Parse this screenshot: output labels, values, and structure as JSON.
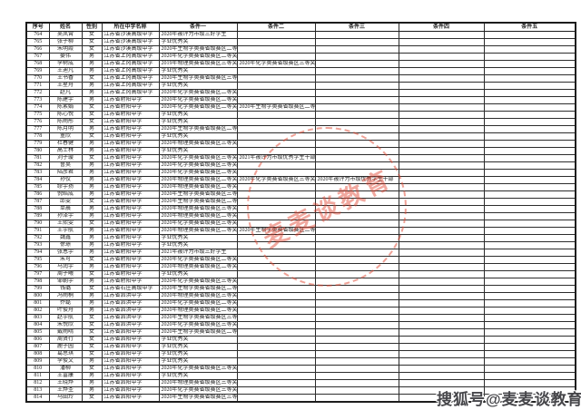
{
  "page": {
    "background": "#ffffff"
  },
  "watermarks": {
    "stamp_text": "麦麦谈教育",
    "stamp_color": "#e0462d",
    "sohu_badge": "搜狐号@麦麦谈教育"
  },
  "table": {
    "headers": [
      "序号",
      "姓名",
      "性别",
      "所在中学名称",
      "条件一",
      "条件二",
      "条件三",
      "条件四",
      "条件五"
    ],
    "rows": [
      [
        "764",
        "吴凤霄",
        "女",
        "江苏省沙溪高级中学",
        "2020年被评为市级三好学生",
        "",
        "",
        "",
        ""
      ],
      [
        "765",
        "张子柳",
        "女",
        "江苏省沙溪高级中学",
        "学业优秀奖",
        "",
        "",
        "",
        ""
      ],
      [
        "766",
        "朱明霞",
        "女",
        "江苏省沙溪高级中学",
        "2020年生物学奥赛省级赛区二等奖",
        "",
        "",
        "",
        ""
      ],
      [
        "767",
        "晏伟",
        "男",
        "江苏省上冈高级中学",
        "2020年化学奥赛省级赛区二等奖",
        "",
        "",
        "",
        ""
      ],
      [
        "768",
        "李树成",
        "男",
        "江苏省上冈高级中学",
        "2019年物理奥赛省级赛区三等奖",
        "2020年化学奥赛省级赛区三等奖",
        "",
        "",
        ""
      ],
      [
        "769",
        "王迪凡",
        "男",
        "江苏省上冈高级中学",
        "学业优秀奖",
        "",
        "",
        "",
        ""
      ],
      [
        "770",
        "王书香",
        "女",
        "江苏省上冈高级中学",
        "2020年生物学奥赛省级赛区三等奖",
        "",
        "",
        "",
        ""
      ],
      [
        "771",
        "王星舟",
        "男",
        "江苏省上冈高级中学",
        "学业优秀奖",
        "",
        "",
        "",
        ""
      ],
      [
        "772",
        "赵凡",
        "男",
        "江苏省上冈高级中学",
        "2020年化学奥赛省级赛区二等奖",
        "",
        "",
        "",
        ""
      ],
      [
        "773",
        "陈建宇",
        "男",
        "江苏省射阳中学",
        "2020年化学奥赛省级赛区二等奖",
        "",
        "",
        "",
        ""
      ],
      [
        "774",
        "陈素娟",
        "女",
        "江苏省射阳中学",
        "2020年化学奥赛省级赛区二等奖",
        "2020年生物学奥赛省级赛区二等奖",
        "",
        "",
        ""
      ],
      [
        "775",
        "陈心悦",
        "女",
        "江苏省射阳中学",
        "学业优秀奖",
        "",
        "",
        "",
        ""
      ],
      [
        "776",
        "陈雨彤",
        "女",
        "江苏省射阳中学",
        "学业优秀奖",
        "",
        "",
        "",
        ""
      ],
      [
        "777",
        "陈月明",
        "男",
        "江苏省射阳中学",
        "2020年生物学奥赛省级赛区二等奖",
        "",
        "",
        "",
        ""
      ],
      [
        "778",
        "董欣",
        "女",
        "江苏省射阳中学",
        "学业优秀奖",
        "",
        "",
        "",
        ""
      ],
      [
        "779",
        "杜春健",
        "男",
        "江苏省射阳中学",
        "2020年物理奥赛省级赛区三等奖",
        "",
        "",
        "",
        ""
      ],
      [
        "780",
        "高士林",
        "男",
        "江苏省射阳中学",
        "学业优秀奖",
        "",
        "",
        "",
        ""
      ],
      [
        "781",
        "刘子璇",
        "女",
        "江苏省射阳中学",
        "2020年化学奥赛省级赛区三等奖",
        "2021年被评为市级优秀学生干部",
        "",
        "",
        ""
      ],
      [
        "782",
        "鲁昊",
        "男",
        "江苏省射阳中学",
        "2020年化学奥赛省级赛区三等奖",
        "",
        "",
        "",
        ""
      ],
      [
        "783",
        "陆彦君",
        "男",
        "江苏省射阳中学",
        "2020年化学奥赛省级赛区二等奖",
        "",
        "",
        "",
        ""
      ],
      [
        "784",
        "孙仪",
        "男",
        "江苏省射阳中学",
        "2020年物理奥赛省级赛区二等奖",
        "2020年化学奥赛省级赛区三等奖",
        "2020年被评为市级优秀学生干部",
        "",
        ""
      ],
      [
        "785",
        "缪宇扬",
        "男",
        "江苏省射阳中学",
        "2020年物理奥赛省级赛区二等奖",
        "",
        "",
        "",
        ""
      ],
      [
        "786",
        "倪皓成",
        "男",
        "江苏省射阳中学",
        "2020年生物学奥赛省级赛区三等奖",
        "",
        "",
        "",
        ""
      ],
      [
        "787",
        "邱雯",
        "女",
        "江苏省射阳中学",
        "2020年生物学奥赛省级赛区二等奖",
        "",
        "",
        "",
        ""
      ],
      [
        "788",
        "单晨",
        "男",
        "江苏省射阳中学",
        "2020年物理奥赛省级赛区三等奖",
        "",
        "",
        "",
        ""
      ],
      [
        "789",
        "孙泽宇",
        "男",
        "江苏省射阳中学",
        "2020年物理奥赛省级赛区二等奖",
        "",
        "",
        "",
        ""
      ],
      [
        "790",
        "王熙雯",
        "女",
        "江苏省射阳中学",
        "2020年化学奥赛省级赛区三等奖",
        "",
        "",
        "",
        ""
      ],
      [
        "791",
        "王宇航",
        "男",
        "江苏省射阳中学",
        "2020年物理奥赛省级赛区二等奖",
        "2020年生物学奥赛省级赛区二等奖",
        "",
        "",
        ""
      ],
      [
        "792",
        "魏鑫",
        "男",
        "江苏省射阳中学",
        "学业优秀奖",
        "",
        "",
        "",
        ""
      ],
      [
        "793",
        "徐璟",
        "男",
        "江苏省射阳中学",
        "学业优秀奖",
        "",
        "",
        "",
        ""
      ],
      [
        "794",
        "张恩宇",
        "男",
        "江苏省射阳中学",
        "2021年被评为市级三好学生",
        "",
        "",
        "",
        ""
      ],
      [
        "795",
        "朱可",
        "女",
        "江苏省射阳中学",
        "2020年化学奥赛省级赛区二等奖",
        "",
        "",
        "",
        ""
      ],
      [
        "796",
        "马润宇",
        "男",
        "江苏省射阳中学",
        "2020年物理奥赛省级赛区二等奖",
        "",
        "",
        "",
        ""
      ],
      [
        "797",
        "周子曦",
        "女",
        "江苏省射阳中学",
        "学业优秀奖",
        "",
        "",
        "",
        ""
      ],
      [
        "798",
        "邹朝宇",
        "男",
        "江苏省射阳中学",
        "2020年化学奥赛省级赛区三等奖",
        "",
        "",
        "",
        ""
      ],
      [
        "799",
        "钱璐",
        "女",
        "江苏省石庄高级中学",
        "2020年生物学奥赛省级赛区二等奖",
        "",
        "",
        "",
        ""
      ],
      [
        "800",
        "冯雨桐",
        "男",
        "江苏省泗洪中学",
        "2020年物理奥赛省级赛区三等奖",
        "",
        "",
        "",
        ""
      ],
      [
        "801",
        "乔磊",
        "男",
        "江苏省泗洪中学",
        "2020年化学奥赛省级赛区二等奖",
        "",
        "",
        "",
        ""
      ],
      [
        "802",
        "叶俊舟",
        "男",
        "江苏省泗洪中学",
        "2020年物理奥赛省级赛区二等奖",
        "",
        "",
        "",
        ""
      ],
      [
        "803",
        "赵宇航",
        "女",
        "江苏省泗洪中学",
        "2020年生物学奥赛省级赛区三等奖",
        "",
        "",
        "",
        ""
      ],
      [
        "804",
        "朱悦欣",
        "女",
        "江苏省泗洪中学",
        "2020年化学奥赛省级赛区三等奖",
        "",
        "",
        "",
        ""
      ],
      [
        "805",
        "戴雨晴",
        "女",
        "江苏省泗阳中学",
        "2020年生物学奥赛省级赛区二等奖",
        "",
        "",
        "",
        ""
      ],
      [
        "806",
        "周贤行",
        "女",
        "江苏省泗阳中学",
        "学业优秀奖",
        "",
        "",
        "",
        ""
      ],
      [
        "807",
        "鹿子园",
        "女",
        "江苏省泗阳中学",
        "学业优秀奖",
        "",
        "",
        "",
        ""
      ],
      [
        "808",
        "葛思琪",
        "女",
        "江苏省泗阳中学",
        "学业优秀奖",
        "",
        "",
        "",
        ""
      ],
      [
        "809",
        "李俊文",
        "男",
        "江苏省泗阳中学",
        "学业优秀奖",
        "",
        "",
        "",
        ""
      ],
      [
        "810",
        "潘柳",
        "女",
        "江苏省泗阳中学",
        "2020年化学奥赛省级赛区三等奖",
        "",
        "",
        "",
        ""
      ],
      [
        "811",
        "王富康",
        "男",
        "江苏省泗阳中学",
        "学业优秀奖",
        "",
        "",
        "",
        ""
      ],
      [
        "812",
        "王晓烨",
        "男",
        "江苏省泗阳中学",
        "2020年物理奥赛省级赛区三等奖",
        "",
        "",
        "",
        ""
      ],
      [
        "813",
        "王烨圣",
        "男",
        "江苏省泗阳中学",
        "2020年化学奥赛省级赛区三等奖",
        "",
        "",
        "",
        ""
      ],
      [
        "814",
        "马田玲",
        "女",
        "江苏省泗阳中学",
        "2020年生物学奥赛省级赛区三等奖",
        "",
        "",
        "",
        ""
      ]
    ]
  }
}
